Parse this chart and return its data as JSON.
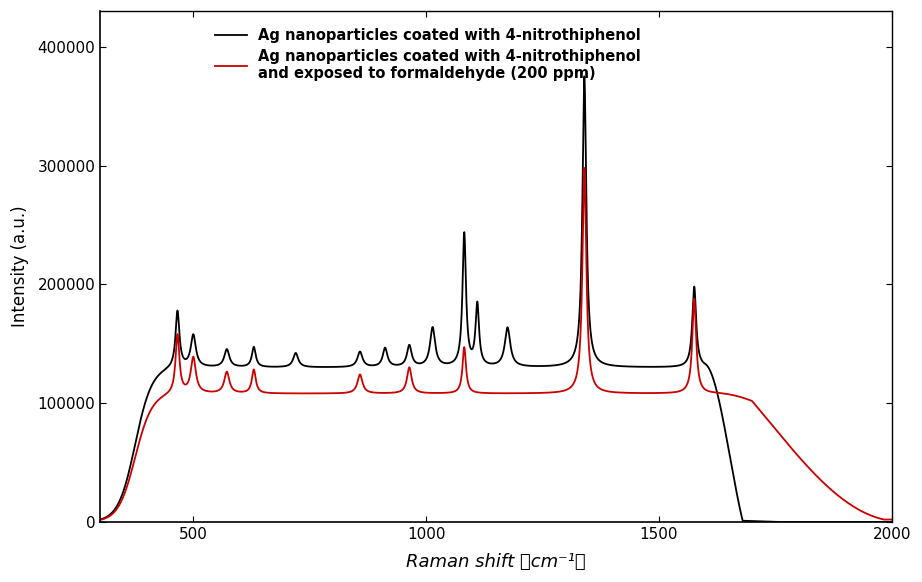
{
  "xlabel": "Raman shift （cm⁻¹）",
  "ylabel": "Intensity (a.u.)",
  "xlim": [
    300,
    2000
  ],
  "ylim": [
    0,
    430000
  ],
  "yticks": [
    0,
    100000,
    200000,
    300000,
    400000
  ],
  "xticks": [
    500,
    1000,
    1500,
    2000
  ],
  "legend_black": "Ag nanoparticles coated with 4-nitrothiphenol",
  "legend_red": "Ag nanoparticles coated with 4-nitrothiphenol\nand exposed to formaldehyde (200 ppm)",
  "black_color": "#000000",
  "red_color": "#cc0000",
  "background_color": "#ffffff",
  "linewidth": 1.3,
  "black_baseline": 130000,
  "red_baseline": 108000,
  "black_peaks": {
    "positions": [
      466,
      500,
      572,
      630,
      720,
      858,
      912,
      964,
      1014,
      1082,
      1110,
      1175,
      1340,
      1576
    ],
    "heights": [
      178000,
      157000,
      145000,
      147000,
      142000,
      143000,
      146000,
      148000,
      163000,
      242000,
      182000,
      163000,
      375000,
      198000
    ],
    "widths": [
      10,
      13,
      13,
      10,
      13,
      13,
      12,
      12,
      13,
      9,
      9,
      14,
      10,
      10
    ]
  },
  "red_peaks": {
    "positions": [
      466,
      500,
      572,
      630,
      858,
      964,
      1082,
      1340,
      1576
    ],
    "heights": [
      158000,
      138000,
      126000,
      128000,
      124000,
      130000,
      147000,
      298000,
      188000
    ],
    "widths": [
      10,
      13,
      13,
      10,
      13,
      12,
      9,
      10,
      10
    ]
  }
}
